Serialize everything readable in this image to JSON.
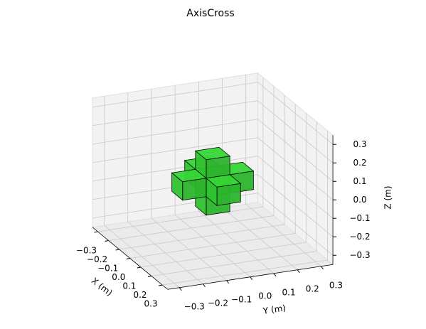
{
  "chart_data": {
    "type": "voxel3d",
    "title": "AxisCross",
    "xlabel": "X (m)",
    "ylabel": "Y (m)",
    "zlabel": "Z (m)",
    "xlim": [
      -0.35,
      0.35
    ],
    "ylim": [
      -0.35,
      0.35
    ],
    "zlim": [
      -0.35,
      0.35
    ],
    "xticks": [
      {
        "value": -0.3,
        "label": "−0.3"
      },
      {
        "value": -0.2,
        "label": "−0.2"
      },
      {
        "value": -0.1,
        "label": "−0.1"
      },
      {
        "value": 0,
        "label": "0.0"
      },
      0.1,
      0.2,
      0.3
    ],
    "yticks": [
      {
        "value": -0.3,
        "label": "−0.3"
      },
      {
        "value": -0.2,
        "label": "−0.2"
      },
      {
        "value": -0.1,
        "label": "−0.1"
      },
      {
        "value": 0,
        "label": "0.0"
      },
      0.1,
      0.2,
      0.3
    ],
    "zticks": [
      {
        "value": -0.3,
        "label": "−0.3"
      },
      {
        "value": -0.2,
        "label": "−0.2"
      },
      {
        "value": -0.1,
        "label": "−0.1"
      },
      {
        "value": 0,
        "label": "0.0"
      },
      0.1,
      0.2,
      0.3
    ],
    "grid": true,
    "color": "#33cc33",
    "voxel_size": 0.1,
    "voxels": [
      [
        0,
        0,
        0
      ],
      [
        0.1,
        0,
        0
      ],
      [
        -0.1,
        0,
        0
      ],
      [
        0,
        0.1,
        0
      ],
      [
        0,
        -0.1,
        0
      ],
      [
        0,
        0,
        0.1
      ],
      [
        0,
        0,
        -0.1
      ]
    ]
  }
}
